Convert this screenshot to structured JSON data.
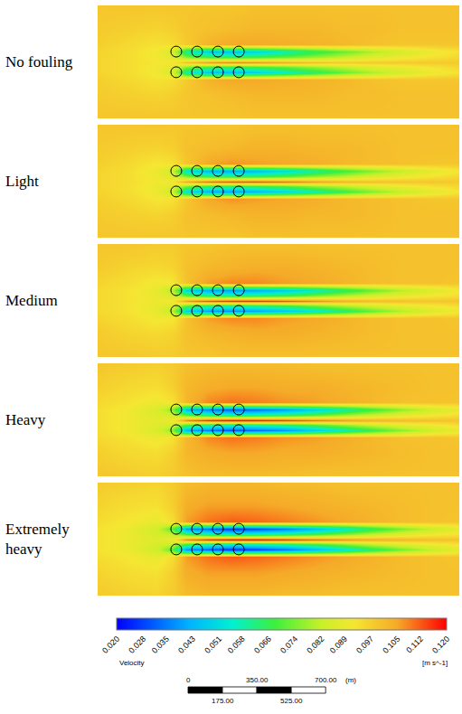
{
  "chart_data": {
    "type": "heatmap",
    "tick_labels": false,
    "xlim": [
      0,
      1840
    ],
    "ylim": [
      0,
      575
    ],
    "x": [
      0,
      150,
      300,
      380,
      450,
      560,
      680,
      800,
      950,
      1100,
      1250,
      1400,
      1550,
      1700,
      1840
    ],
    "y": [
      0,
      120,
      200,
      235,
      262,
      287,
      313,
      340,
      375,
      455,
      575
    ],
    "panels": [
      {
        "title": "No fouling",
        "z": [
          [
            0.099,
            0.099,
            0.099,
            0.099,
            0.099,
            0.099,
            0.099,
            0.1,
            0.1,
            0.1,
            0.1,
            0.1,
            0.1,
            0.1,
            0.1
          ],
          [
            0.098,
            0.097,
            0.096,
            0.097,
            0.099,
            0.1,
            0.101,
            0.102,
            0.102,
            0.102,
            0.101,
            0.101,
            0.1,
            0.1,
            0.1
          ],
          [
            0.097,
            0.095,
            0.093,
            0.094,
            0.098,
            0.103,
            0.105,
            0.105,
            0.104,
            0.103,
            0.102,
            0.1,
            0.099,
            0.099,
            0.099
          ],
          [
            0.096,
            0.094,
            0.091,
            0.085,
            0.058,
            0.046,
            0.044,
            0.048,
            0.056,
            0.064,
            0.072,
            0.079,
            0.085,
            0.09,
            0.093
          ],
          [
            0.096,
            0.094,
            0.091,
            0.088,
            0.075,
            0.068,
            0.066,
            0.068,
            0.072,
            0.077,
            0.082,
            0.087,
            0.09,
            0.093,
            0.095
          ],
          [
            0.096,
            0.094,
            0.092,
            0.092,
            0.1,
            0.106,
            0.108,
            0.107,
            0.104,
            0.1,
            0.098,
            0.098,
            0.098,
            0.098,
            0.098
          ],
          [
            0.096,
            0.094,
            0.091,
            0.088,
            0.075,
            0.068,
            0.066,
            0.068,
            0.072,
            0.077,
            0.082,
            0.087,
            0.09,
            0.093,
            0.095
          ],
          [
            0.096,
            0.094,
            0.091,
            0.085,
            0.058,
            0.046,
            0.044,
            0.048,
            0.056,
            0.064,
            0.072,
            0.079,
            0.085,
            0.09,
            0.093
          ],
          [
            0.097,
            0.095,
            0.093,
            0.094,
            0.098,
            0.103,
            0.105,
            0.105,
            0.104,
            0.103,
            0.102,
            0.1,
            0.099,
            0.099,
            0.099
          ],
          [
            0.098,
            0.097,
            0.096,
            0.097,
            0.099,
            0.1,
            0.101,
            0.102,
            0.102,
            0.102,
            0.101,
            0.101,
            0.1,
            0.1,
            0.1
          ],
          [
            0.099,
            0.099,
            0.099,
            0.099,
            0.099,
            0.099,
            0.099,
            0.1,
            0.1,
            0.1,
            0.1,
            0.1,
            0.1,
            0.1,
            0.1
          ]
        ]
      },
      {
        "title": "Light",
        "z": [
          [
            0.099,
            0.099,
            0.099,
            0.099,
            0.099,
            0.099,
            0.099,
            0.1,
            0.1,
            0.1,
            0.1,
            0.1,
            0.1,
            0.1,
            0.1
          ],
          [
            0.098,
            0.097,
            0.096,
            0.097,
            0.1,
            0.101,
            0.102,
            0.103,
            0.103,
            0.102,
            0.102,
            0.101,
            0.1,
            0.1,
            0.1
          ],
          [
            0.097,
            0.095,
            0.092,
            0.093,
            0.099,
            0.105,
            0.107,
            0.106,
            0.105,
            0.104,
            0.102,
            0.101,
            0.1,
            0.099,
            0.099
          ],
          [
            0.096,
            0.094,
            0.09,
            0.083,
            0.052,
            0.042,
            0.04,
            0.043,
            0.05,
            0.058,
            0.067,
            0.075,
            0.082,
            0.088,
            0.092
          ],
          [
            0.096,
            0.094,
            0.09,
            0.087,
            0.074,
            0.066,
            0.064,
            0.066,
            0.07,
            0.076,
            0.081,
            0.086,
            0.09,
            0.093,
            0.095
          ],
          [
            0.096,
            0.094,
            0.091,
            0.092,
            0.104,
            0.11,
            0.113,
            0.113,
            0.11,
            0.106,
            0.102,
            0.1,
            0.099,
            0.099,
            0.098
          ],
          [
            0.096,
            0.094,
            0.09,
            0.087,
            0.074,
            0.066,
            0.064,
            0.066,
            0.07,
            0.076,
            0.081,
            0.086,
            0.09,
            0.093,
            0.095
          ],
          [
            0.096,
            0.094,
            0.09,
            0.083,
            0.052,
            0.042,
            0.04,
            0.043,
            0.05,
            0.058,
            0.067,
            0.075,
            0.082,
            0.088,
            0.092
          ],
          [
            0.097,
            0.095,
            0.092,
            0.093,
            0.099,
            0.105,
            0.107,
            0.106,
            0.105,
            0.104,
            0.102,
            0.101,
            0.1,
            0.099,
            0.099
          ],
          [
            0.098,
            0.097,
            0.096,
            0.097,
            0.1,
            0.101,
            0.102,
            0.103,
            0.103,
            0.102,
            0.102,
            0.101,
            0.1,
            0.1,
            0.1
          ],
          [
            0.099,
            0.099,
            0.099,
            0.099,
            0.099,
            0.099,
            0.099,
            0.1,
            0.1,
            0.1,
            0.1,
            0.1,
            0.1,
            0.1,
            0.1
          ]
        ]
      },
      {
        "title": "Medium",
        "z": [
          [
            0.099,
            0.099,
            0.098,
            0.098,
            0.099,
            0.099,
            0.1,
            0.1,
            0.1,
            0.1,
            0.1,
            0.1,
            0.1,
            0.1,
            0.1
          ],
          [
            0.098,
            0.096,
            0.095,
            0.096,
            0.1,
            0.102,
            0.103,
            0.104,
            0.104,
            0.103,
            0.102,
            0.101,
            0.1,
            0.1,
            0.1
          ],
          [
            0.096,
            0.094,
            0.091,
            0.092,
            0.1,
            0.106,
            0.108,
            0.108,
            0.106,
            0.105,
            0.103,
            0.101,
            0.1,
            0.1,
            0.099
          ],
          [
            0.095,
            0.093,
            0.089,
            0.08,
            0.048,
            0.04,
            0.038,
            0.04,
            0.046,
            0.054,
            0.063,
            0.072,
            0.08,
            0.086,
            0.091
          ],
          [
            0.095,
            0.093,
            0.089,
            0.086,
            0.072,
            0.064,
            0.062,
            0.064,
            0.068,
            0.074,
            0.08,
            0.085,
            0.089,
            0.092,
            0.094
          ],
          [
            0.095,
            0.093,
            0.09,
            0.092,
            0.106,
            0.113,
            0.116,
            0.116,
            0.113,
            0.108,
            0.104,
            0.101,
            0.1,
            0.099,
            0.099
          ],
          [
            0.095,
            0.093,
            0.089,
            0.086,
            0.072,
            0.064,
            0.062,
            0.064,
            0.068,
            0.074,
            0.08,
            0.085,
            0.089,
            0.092,
            0.094
          ],
          [
            0.095,
            0.093,
            0.089,
            0.08,
            0.048,
            0.04,
            0.038,
            0.04,
            0.046,
            0.054,
            0.063,
            0.072,
            0.08,
            0.086,
            0.091
          ],
          [
            0.096,
            0.094,
            0.091,
            0.092,
            0.1,
            0.106,
            0.108,
            0.108,
            0.106,
            0.105,
            0.103,
            0.101,
            0.1,
            0.1,
            0.099
          ],
          [
            0.098,
            0.096,
            0.095,
            0.096,
            0.1,
            0.102,
            0.103,
            0.104,
            0.104,
            0.103,
            0.102,
            0.101,
            0.1,
            0.1,
            0.1
          ],
          [
            0.099,
            0.099,
            0.098,
            0.098,
            0.099,
            0.099,
            0.1,
            0.1,
            0.1,
            0.1,
            0.1,
            0.1,
            0.1,
            0.1,
            0.1
          ]
        ]
      },
      {
        "title": "Heavy",
        "z": [
          [
            0.099,
            0.098,
            0.097,
            0.098,
            0.1,
            0.101,
            0.101,
            0.101,
            0.101,
            0.1,
            0.1,
            0.1,
            0.1,
            0.1,
            0.1
          ],
          [
            0.097,
            0.095,
            0.094,
            0.097,
            0.102,
            0.104,
            0.105,
            0.105,
            0.104,
            0.104,
            0.103,
            0.102,
            0.101,
            0.1,
            0.1
          ],
          [
            0.095,
            0.093,
            0.09,
            0.093,
            0.102,
            0.108,
            0.11,
            0.109,
            0.107,
            0.106,
            0.104,
            0.102,
            0.1,
            0.1,
            0.099
          ],
          [
            0.094,
            0.091,
            0.086,
            0.075,
            0.042,
            0.035,
            0.03,
            0.032,
            0.038,
            0.047,
            0.057,
            0.067,
            0.076,
            0.084,
            0.089
          ],
          [
            0.094,
            0.091,
            0.087,
            0.084,
            0.07,
            0.062,
            0.058,
            0.06,
            0.064,
            0.07,
            0.077,
            0.083,
            0.088,
            0.091,
            0.094
          ],
          [
            0.094,
            0.091,
            0.088,
            0.091,
            0.108,
            0.116,
            0.119,
            0.118,
            0.115,
            0.11,
            0.106,
            0.103,
            0.101,
            0.1,
            0.099
          ],
          [
            0.094,
            0.091,
            0.087,
            0.084,
            0.07,
            0.062,
            0.058,
            0.06,
            0.064,
            0.07,
            0.077,
            0.083,
            0.088,
            0.091,
            0.094
          ],
          [
            0.094,
            0.091,
            0.086,
            0.075,
            0.042,
            0.035,
            0.03,
            0.032,
            0.038,
            0.047,
            0.057,
            0.067,
            0.076,
            0.084,
            0.089
          ],
          [
            0.095,
            0.093,
            0.09,
            0.093,
            0.102,
            0.108,
            0.11,
            0.109,
            0.107,
            0.106,
            0.104,
            0.102,
            0.1,
            0.1,
            0.099
          ],
          [
            0.097,
            0.095,
            0.094,
            0.097,
            0.102,
            0.104,
            0.105,
            0.105,
            0.104,
            0.104,
            0.103,
            0.102,
            0.101,
            0.1,
            0.1
          ],
          [
            0.099,
            0.098,
            0.097,
            0.098,
            0.1,
            0.101,
            0.101,
            0.101,
            0.101,
            0.1,
            0.1,
            0.1,
            0.1,
            0.1,
            0.1
          ]
        ]
      },
      {
        "title": "Extremely heavy",
        "z": [
          [
            0.098,
            0.097,
            0.096,
            0.098,
            0.101,
            0.102,
            0.102,
            0.102,
            0.101,
            0.101,
            0.1,
            0.1,
            0.1,
            0.1,
            0.1
          ],
          [
            0.096,
            0.094,
            0.093,
            0.097,
            0.104,
            0.106,
            0.106,
            0.106,
            0.105,
            0.104,
            0.103,
            0.102,
            0.101,
            0.1,
            0.1
          ],
          [
            0.094,
            0.092,
            0.089,
            0.094,
            0.106,
            0.11,
            0.112,
            0.111,
            0.109,
            0.107,
            0.105,
            0.103,
            0.101,
            0.1,
            0.099
          ],
          [
            0.093,
            0.09,
            0.084,
            0.07,
            0.038,
            0.032,
            0.026,
            0.028,
            0.034,
            0.043,
            0.053,
            0.064,
            0.074,
            0.082,
            0.088
          ],
          [
            0.093,
            0.09,
            0.085,
            0.082,
            0.068,
            0.06,
            0.056,
            0.058,
            0.062,
            0.068,
            0.075,
            0.082,
            0.087,
            0.091,
            0.093
          ],
          [
            0.093,
            0.09,
            0.087,
            0.09,
            0.108,
            0.116,
            0.119,
            0.119,
            0.116,
            0.111,
            0.107,
            0.104,
            0.102,
            0.1,
            0.099
          ],
          [
            0.093,
            0.09,
            0.085,
            0.082,
            0.068,
            0.06,
            0.056,
            0.058,
            0.062,
            0.068,
            0.075,
            0.082,
            0.087,
            0.091,
            0.093
          ],
          [
            0.093,
            0.09,
            0.084,
            0.07,
            0.038,
            0.032,
            0.026,
            0.028,
            0.034,
            0.043,
            0.053,
            0.064,
            0.074,
            0.082,
            0.088
          ],
          [
            0.094,
            0.092,
            0.089,
            0.094,
            0.106,
            0.11,
            0.112,
            0.111,
            0.109,
            0.107,
            0.105,
            0.103,
            0.101,
            0.1,
            0.099
          ],
          [
            0.096,
            0.094,
            0.093,
            0.097,
            0.104,
            0.106,
            0.106,
            0.106,
            0.105,
            0.104,
            0.103,
            0.102,
            0.101,
            0.1,
            0.1
          ],
          [
            0.098,
            0.097,
            0.096,
            0.098,
            0.101,
            0.102,
            0.102,
            0.102,
            0.101,
            0.101,
            0.1,
            0.1,
            0.1,
            0.1,
            0.1
          ]
        ]
      }
    ],
    "cages": {
      "x": [
        400,
        506,
        612,
        718,
        400,
        506,
        612,
        718
      ],
      "y": [
        235,
        235,
        235,
        235,
        340,
        340,
        340,
        340
      ],
      "marker": "circle-open"
    },
    "colorbar": {
      "title": "Velocity",
      "unit": "[m s^-1]",
      "range": [
        0.02,
        0.12
      ],
      "ticks": [
        {
          "value": 0.02,
          "label": "0.020"
        },
        0.028,
        0.035,
        0.043,
        0.051,
        0.058,
        0.066,
        0.074,
        0.082,
        0.089,
        0.097,
        0.105,
        0.112,
        {
          "value": 0.12,
          "label": "0.120"
        }
      ]
    },
    "scale_bar": {
      "ticks": [
        0,
        {
          "value": 175,
          "label": "175.00"
        },
        {
          "value": 350,
          "label": "350.00"
        },
        {
          "value": 525,
          "label": "525.00"
        },
        {
          "value": 700,
          "label": "700.00"
        }
      ],
      "unit": "(m)"
    }
  }
}
